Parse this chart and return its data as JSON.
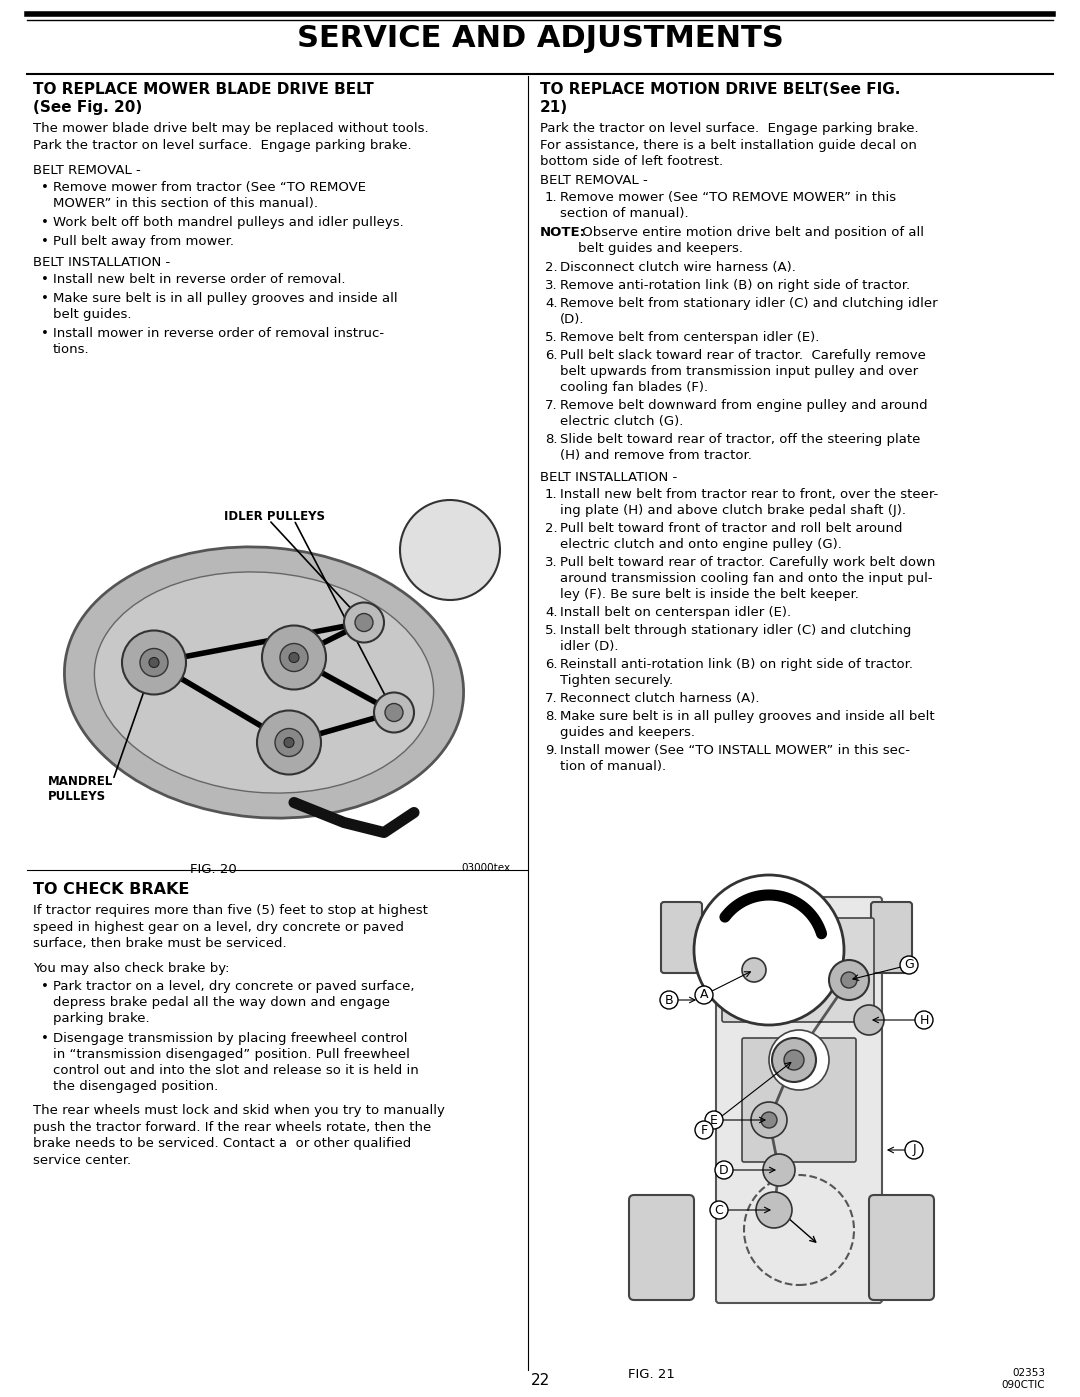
{
  "title": "SERVICE AND ADJUSTMENTS",
  "page_number": "22",
  "background_color": "#ffffff",
  "left_section": {
    "heading1": "TO REPLACE MOWER BLADE DRIVE BELT",
    "heading2": "(See Fig. 20)",
    "intro": "The mower blade drive belt may be replaced without tools.\nPark the tractor on level surface.  Engage parking brake.",
    "belt_removal_title": "BELT REMOVAL -",
    "belt_removal_items": [
      "Remove mower from tractor (See “TO REMOVE\nMOWER” in this section of this manual).",
      "Work belt off both mandrel pulleys and idler pulleys.",
      "Pull belt away from mower."
    ],
    "belt_installation_title": "BELT INSTALLATION -",
    "belt_installation_items": [
      "Install new belt in reverse order of removal.",
      "Make sure belt is in all pulley grooves and inside all\nbelt guides.",
      "Install mower in reverse order of removal instruc-\ntions."
    ],
    "fig_label": "FIG. 20",
    "fig_note": "03000tex",
    "idler_pulleys_label": "IDLER PULLEYS",
    "mandrel_pulleys_label": "MANDREL\nPULLEYS"
  },
  "right_section": {
    "heading1": "TO REPLACE MOTION DRIVE BELT(See FIG.",
    "heading2": "21)",
    "intro": "Park the tractor on level surface.  Engage parking brake.\nFor assistance, there is a belt installation guide decal on\nbottom side of left footrest.",
    "belt_removal_title": "BELT REMOVAL -",
    "note_bold": "NOTE:",
    "note_rest": " Observe entire motion drive belt and position of all\nbelt guides and keepers.",
    "belt_removal_items": [
      "Remove mower (See “TO REMOVE MOWER” in this\nsection of manual).",
      "Disconnect clutch wire harness (A).",
      "Remove anti-rotation link (B) on right side of tractor.",
      "Remove belt from stationary idler (C) and clutching idler\n(D).",
      "Remove belt from centerspan idler (E).",
      "Pull belt slack toward rear of tractor.  Carefully remove\nbelt upwards from transmission input pulley and over\ncooling fan blades (F).",
      "Remove belt downward from engine pulley and around\nelectric clutch (G).",
      "Slide belt toward rear of tractor, off the steering plate\n(H) and remove from tractor."
    ],
    "belt_installation_title": "BELT INSTALLATION -",
    "belt_installation_items": [
      "Install new belt from tractor rear to front, over the steer-\ning plate (H) and above clutch brake pedal shaft (J).",
      "Pull belt toward front of tractor and roll belt around\nelectric clutch and onto engine pulley (G).",
      "Pull belt toward rear of tractor. Carefully work belt down\naround transmission cooling fan and onto the input pul-\nley (F). Be sure belt is inside the belt keeper.",
      "Install belt on centerspan idler (E).",
      "Install belt through stationary idler (C) and clutching\nidler (D).",
      "Reinstall anti-rotation link (B) on right side of tractor.\nTighten securely.",
      "Reconnect clutch harness (A).",
      "Make sure belt is in all pulley grooves and inside all belt\nguides and keepers.",
      "Install mower (See “TO INSTALL MOWER” in this sec-\ntion of manual)."
    ],
    "fig_label": "FIG. 21",
    "fig_note": "02353\n090CTIC"
  },
  "bottom_left_section": {
    "heading": "TO CHECK BRAKE",
    "intro": "If tractor requires more than five (5) feet to stop at highest\nspeed in highest gear on a level, dry concrete or paved\nsurface, then brake must be serviced.",
    "para2": "You may also check brake by:",
    "items": [
      "Park tractor on a level, dry concrete or paved surface,\ndepress brake pedal all the way down and engage\nparking brake.",
      "Disengage transmission by placing freewheel control\nin “transmission disengaged” position. Pull freewheel\ncontrol out and into the slot and release so it is held in\nthe disengaged position."
    ],
    "para3": "The rear wheels must lock and skid when you try to manually\npush the tractor forward. If the rear wheels rotate, then the\nbrake needs to be serviced. Contact a  or other qualified\nservice center."
  }
}
